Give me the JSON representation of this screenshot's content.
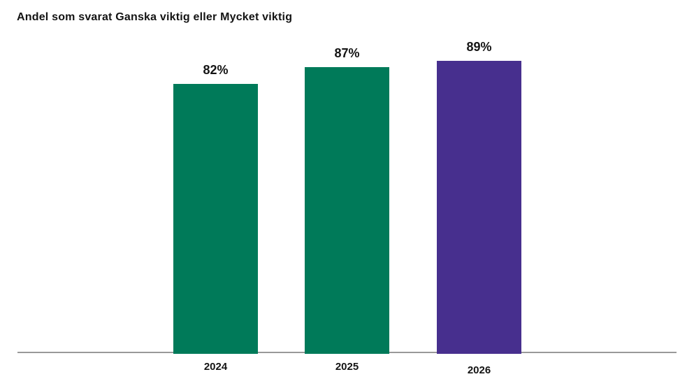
{
  "page": {
    "background": "#FFFFFF"
  },
  "chart_data": {
    "type": "bar",
    "title": "Andel som svarat Ganska viktig eller Mycket viktig",
    "categories": [
      "2024",
      "2025",
      "2026"
    ],
    "values": [
      82,
      87,
      89
    ],
    "value_labels": [
      "82%",
      "87%",
      "89%"
    ],
    "series": [
      {
        "name": "Andel",
        "values": [
          82,
          87,
          89
        ]
      }
    ],
    "bar_colors": [
      "#007A59",
      "#007A59",
      "#472F8E"
    ],
    "xlabel": "",
    "ylabel": "",
    "ylim": [
      0,
      100
    ],
    "grid": false,
    "legend": null,
    "axis_line_color": "#999999",
    "text_color": "#141414"
  }
}
